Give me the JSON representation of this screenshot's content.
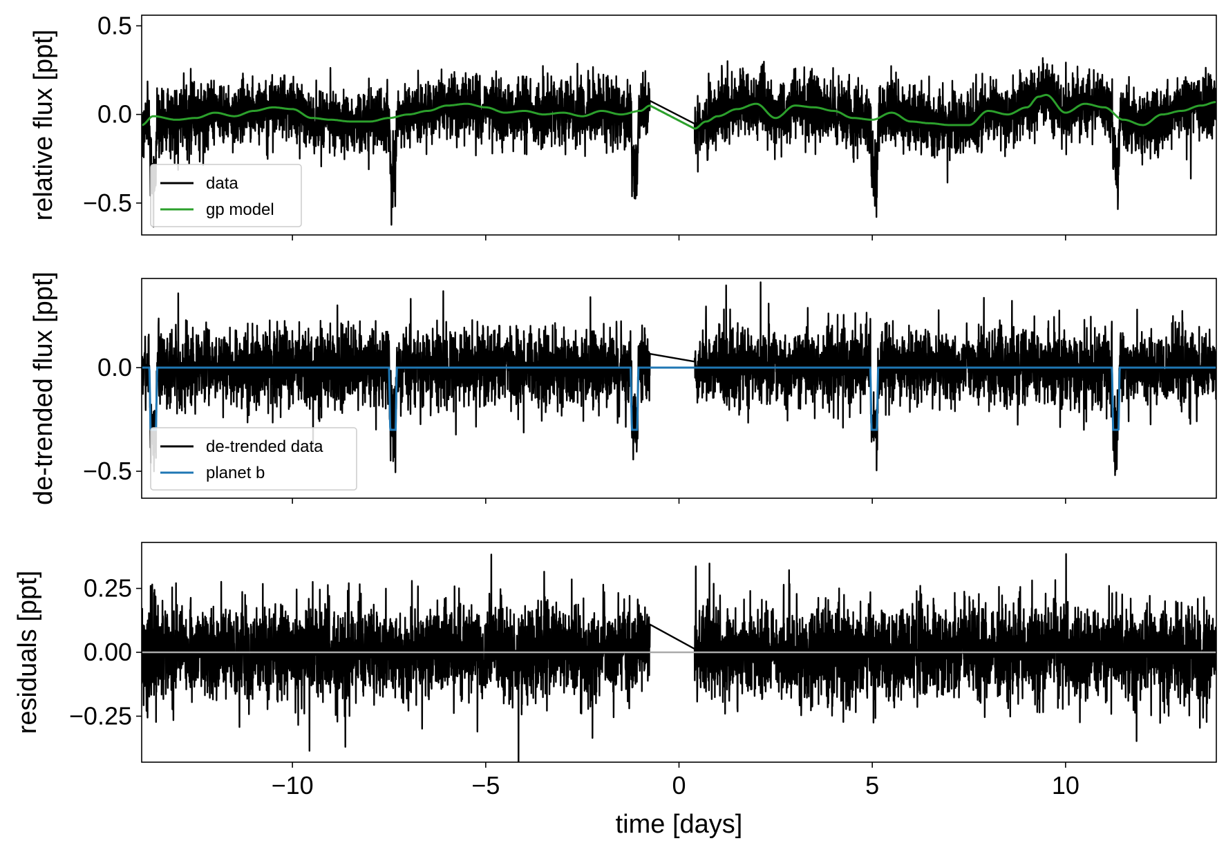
{
  "colors": {
    "data": "#000000",
    "gp_model": "#2ca02c",
    "planet": "#1f77b4",
    "zero_line": "#aaaaaa",
    "axes": "#000000",
    "legend_border": "#cccccc"
  },
  "chart_data": [
    {
      "type": "line",
      "title": "",
      "xlabel": "",
      "ylabel": "relative flux [ppt]",
      "xlim": [
        -13.9,
        13.9
      ],
      "ylim": [
        -0.68,
        0.56
      ],
      "yticks": [
        -0.5,
        0.0,
        0.5
      ],
      "ytick_labels": [
        "−0.5",
        "0.0",
        "0.5"
      ],
      "xticks": [
        -10,
        -5,
        0,
        5,
        10
      ],
      "xtick_labels_visible": false,
      "legend": {
        "position": "lower-left",
        "entries": [
          "data",
          "gp model"
        ]
      },
      "data_gap": [
        -0.75,
        0.4
      ],
      "noise_band": {
        "baseline": "gp model",
        "sigma": 0.09
      },
      "transits": {
        "times": [
          -13.6,
          -7.4,
          -1.15,
          5.05,
          11.3
        ],
        "depth": 0.3
      },
      "series": [
        {
          "name": "data",
          "role": "scatter-line",
          "x_range": [
            -13.9,
            13.9
          ]
        },
        {
          "name": "gp model",
          "role": "smooth",
          "x": [
            -13.9,
            -13.6,
            -13.0,
            -12.5,
            -12.0,
            -11.5,
            -11.0,
            -10.5,
            -10.0,
            -9.5,
            -9.0,
            -8.5,
            -8.0,
            -7.5,
            -7.0,
            -6.5,
            -6.0,
            -5.5,
            -5.0,
            -4.5,
            -4.0,
            -3.5,
            -3.0,
            -2.5,
            -2.0,
            -1.5,
            -1.0,
            -0.75,
            0.4,
            0.7,
            1.0,
            1.5,
            2.0,
            2.5,
            3.0,
            3.5,
            4.0,
            4.5,
            5.0,
            5.5,
            6.0,
            6.5,
            7.0,
            7.5,
            8.0,
            8.5,
            9.0,
            9.3,
            9.5,
            10.0,
            10.5,
            11.0,
            11.5,
            12.0,
            12.5,
            13.0,
            13.5,
            13.9
          ],
          "y": [
            -0.06,
            -0.01,
            -0.03,
            -0.02,
            0.01,
            -0.01,
            0.02,
            0.04,
            0.03,
            -0.02,
            -0.03,
            -0.04,
            -0.04,
            -0.02,
            0.0,
            0.02,
            0.05,
            0.06,
            0.04,
            0.01,
            0.02,
            0.0,
            0.01,
            -0.01,
            0.02,
            0.0,
            0.02,
            0.05,
            -0.08,
            -0.04,
            -0.01,
            0.03,
            0.06,
            -0.02,
            0.05,
            0.04,
            0.02,
            -0.02,
            -0.03,
            0.01,
            -0.04,
            -0.05,
            -0.06,
            -0.06,
            0.02,
            0.0,
            0.04,
            0.1,
            0.11,
            0.01,
            0.06,
            0.04,
            -0.03,
            -0.06,
            0.0,
            0.02,
            0.05,
            0.07
          ]
        }
      ]
    },
    {
      "type": "line",
      "title": "",
      "xlabel": "",
      "ylabel": "de-trended flux [ppt]",
      "xlim": [
        -13.9,
        13.9
      ],
      "ylim": [
        -0.63,
        0.43
      ],
      "yticks": [
        -0.5,
        0.0
      ],
      "ytick_labels": [
        "−0.5",
        "0.0"
      ],
      "xticks": [
        -10,
        -5,
        0,
        5,
        10
      ],
      "xtick_labels_visible": false,
      "legend": {
        "position": "lower-left",
        "entries": [
          "de-trended data",
          "planet b"
        ]
      },
      "data_gap": [
        -0.75,
        0.4
      ],
      "noise_band": {
        "baseline": "planet b",
        "sigma": 0.09
      },
      "series": [
        {
          "name": "de-trended data",
          "role": "scatter-line",
          "x_range": [
            -13.9,
            13.9
          ]
        },
        {
          "name": "planet b",
          "role": "transit-model",
          "baseline": 0.0,
          "transit_times": [
            -13.6,
            -7.4,
            -1.15,
            5.05,
            11.3
          ],
          "depth": 0.3,
          "duration": 0.2
        }
      ]
    },
    {
      "type": "line",
      "title": "",
      "xlabel": "time [days]",
      "ylabel": "residuals [ppt]",
      "xlim": [
        -13.9,
        13.9
      ],
      "ylim": [
        -0.43,
        0.43
      ],
      "yticks": [
        -0.25,
        0.0,
        0.25
      ],
      "ytick_labels": [
        "−0.25",
        "0.00",
        "0.25"
      ],
      "xticks": [
        -10,
        -5,
        0,
        5,
        10
      ],
      "xtick_labels": [
        "−10",
        "−5",
        "0",
        "5",
        "10"
      ],
      "xtick_labels_visible": true,
      "data_gap": [
        -0.75,
        0.4
      ],
      "noise_band": {
        "baseline": "zero",
        "sigma": 0.09
      },
      "series": [
        {
          "name": "residuals",
          "role": "scatter-line",
          "x_range": [
            -13.9,
            13.9
          ]
        },
        {
          "name": "zero",
          "role": "hline",
          "y": 0.0
        }
      ]
    }
  ]
}
